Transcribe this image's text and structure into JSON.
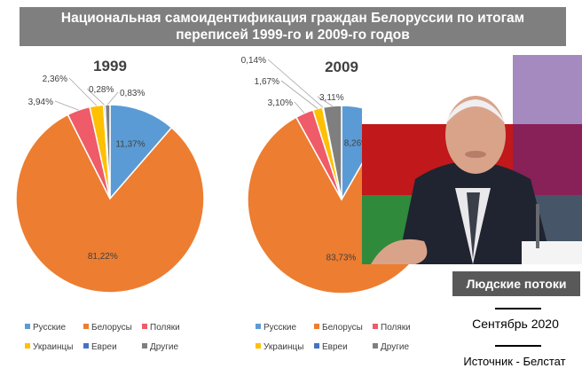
{
  "title": {
    "line1": "Национальная самоидентификация граждан Белоруссии по итогам",
    "line2": "переписей 1999-го и 2009-го годов"
  },
  "colors": {
    "Русские": "#5b9bd5",
    "Белорусы": "#ed7d31",
    "Поляки": "#ef5b68",
    "Украинцы": "#ffc000",
    "Евреи": "#4472c4",
    "Другие": "#7f7f7f"
  },
  "chart_data": [
    {
      "type": "pie",
      "title": "1999",
      "legend_position": "bottom",
      "slices": [
        {
          "name": "Русские",
          "value": 11.37,
          "label": "11,37%"
        },
        {
          "name": "Белорусы",
          "value": 81.22,
          "label": "81,22%"
        },
        {
          "name": "Поляки",
          "value": 3.94,
          "label": "3,94%"
        },
        {
          "name": "Украинцы",
          "value": 2.36,
          "label": "2,36%"
        },
        {
          "name": "Евреи",
          "value": 0.28,
          "label": "0,28%"
        },
        {
          "name": "Другие",
          "value": 0.83,
          "label": "0,83%"
        }
      ]
    },
    {
      "type": "pie",
      "title": "2009",
      "legend_position": "bottom",
      "slices": [
        {
          "name": "Русские",
          "value": 8.26,
          "label": "8,26%"
        },
        {
          "name": "Белорусы",
          "value": 83.73,
          "label": "83,73%"
        },
        {
          "name": "Поляки",
          "value": 3.1,
          "label": "3,10%"
        },
        {
          "name": "Украинцы",
          "value": 1.67,
          "label": "1,67%"
        },
        {
          "name": "Евреи",
          "value": 0.14,
          "label": "0,14%"
        },
        {
          "name": "Другие",
          "value": 3.11,
          "label": "3,11%"
        }
      ]
    }
  ],
  "legend": [
    "Русские",
    "Белорусы",
    "Поляки",
    "Украинцы",
    "Евреи",
    "Другие"
  ],
  "badge": "Людские потоки",
  "date": "Сентябрь 2020",
  "source": "Источник - Белстат"
}
